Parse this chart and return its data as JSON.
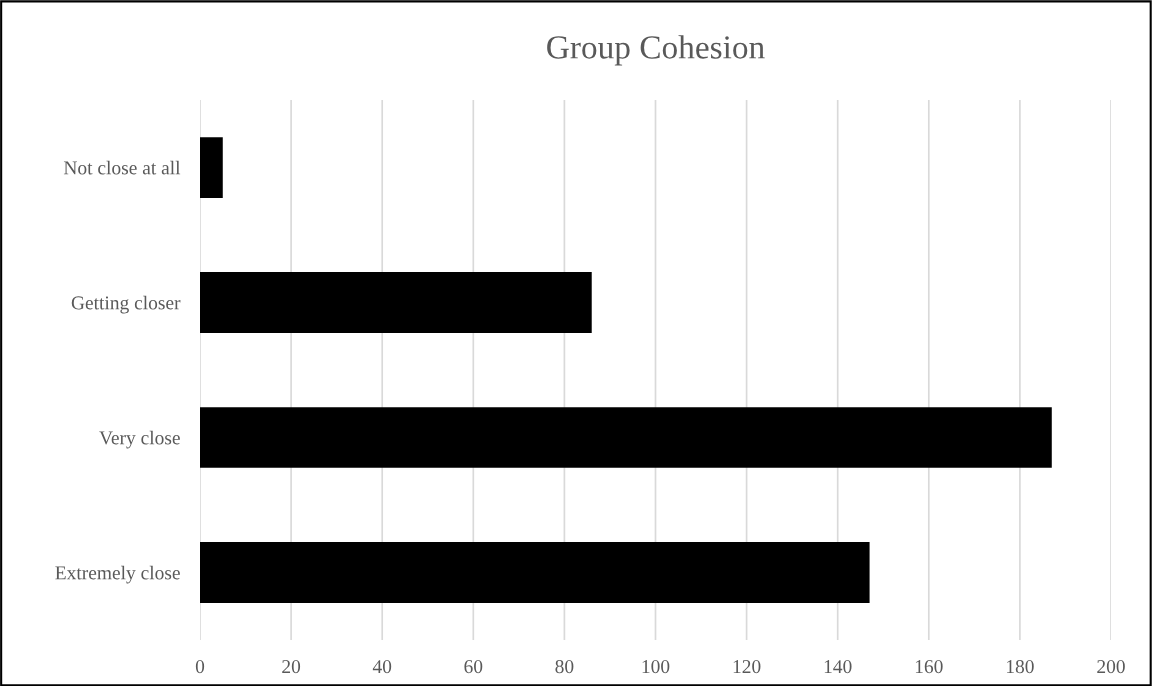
{
  "chart_data": {
    "type": "bar",
    "title": "Group Cohesion",
    "orientation": "horizontal",
    "categories": [
      "Not close at all",
      "Getting closer",
      "Very close",
      "Extremely close"
    ],
    "values": [
      5,
      86,
      187,
      147
    ],
    "color": "#000000",
    "xlim": [
      0,
      200
    ],
    "xticks": [
      0,
      20,
      40,
      60,
      80,
      100,
      120,
      140,
      160,
      180,
      200
    ],
    "grid": "x",
    "legend": false
  }
}
